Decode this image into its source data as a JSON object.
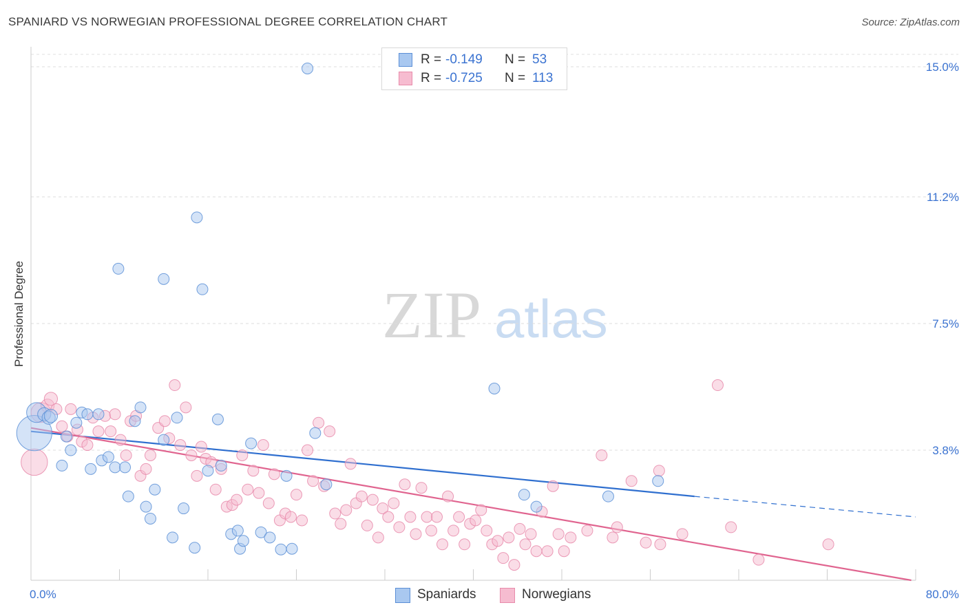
{
  "header": {
    "title": "SPANIARD VS NORWEGIAN PROFESSIONAL DEGREE CORRELATION CHART",
    "source": "Source: ZipAtlas.com"
  },
  "watermark": {
    "zip": "ZIP",
    "atlas": "atlas"
  },
  "stats": [
    {
      "r_label": "R =",
      "r_value": "-0.149",
      "n_label": "N =",
      "n_value": "53"
    },
    {
      "r_label": "R =",
      "r_value": "-0.725",
      "n_label": "N =",
      "n_value": "113"
    }
  ],
  "legend": [
    "Spaniards",
    "Norwegians"
  ],
  "colors": {
    "spaniards_fill": "#a9c8f0",
    "spaniards_stroke": "#5b8fd6",
    "spaniards_line": "#2f6fcf",
    "norwegians_fill": "#f6bcd0",
    "norwegians_stroke": "#e88aaa",
    "norwegians_line": "#e0648f",
    "axis_label": "#3b73d1",
    "grid": "#dddddd"
  },
  "chart_data": {
    "type": "scatter",
    "title": "SPANIARD VS NORWEGIAN PROFESSIONAL DEGREE CORRELATION CHART",
    "xlabel": "",
    "ylabel": "Professional Degree",
    "xlim": [
      0,
      80
    ],
    "ylim": [
      0,
      15.2
    ],
    "x_tick_labels": [
      {
        "value": 0,
        "label": "0.0%"
      },
      {
        "value": 80,
        "label": "80.0%"
      }
    ],
    "y_tick_labels": [
      {
        "value": 3.8,
        "label": "3.8%"
      },
      {
        "value": 7.5,
        "label": "7.5%"
      },
      {
        "value": 11.2,
        "label": "11.2%"
      },
      {
        "value": 15.0,
        "label": "15.0%"
      }
    ],
    "grid": true,
    "legend_position": "bottom-center",
    "series": [
      {
        "name": "Spaniards",
        "r": -0.149,
        "n": 53,
        "trend": {
          "x0": 0,
          "y0": 4.35,
          "x1": 60,
          "y1": 2.45,
          "dashed_to_x": 80,
          "dashed_y": 1.85
        },
        "points": [
          [
            0.3,
            4.3,
            1.6
          ],
          [
            0.5,
            4.9,
            0.9
          ],
          [
            1.2,
            4.85,
            0.6
          ],
          [
            1.6,
            4.75,
            0.6
          ],
          [
            1.8,
            4.8,
            0.6
          ],
          [
            2.8,
            3.35,
            0.5
          ],
          [
            3.2,
            4.2,
            0.5
          ],
          [
            3.6,
            3.8,
            0.5
          ],
          [
            4.1,
            4.6,
            0.5
          ],
          [
            4.6,
            4.9,
            0.5
          ],
          [
            5.1,
            4.85,
            0.5
          ],
          [
            5.4,
            3.25,
            0.5
          ],
          [
            6.1,
            4.85,
            0.5
          ],
          [
            6.4,
            3.5,
            0.5
          ],
          [
            7.0,
            3.6,
            0.5
          ],
          [
            7.6,
            3.3,
            0.5
          ],
          [
            8.5,
            3.3,
            0.5
          ],
          [
            8.8,
            2.45,
            0.5
          ],
          [
            9.4,
            4.65,
            0.5
          ],
          [
            9.9,
            5.05,
            0.5
          ],
          [
            10.4,
            2.15,
            0.5
          ],
          [
            10.8,
            1.8,
            0.5
          ],
          [
            11.2,
            2.65,
            0.5
          ],
          [
            12.0,
            4.1,
            0.5
          ],
          [
            12.8,
            1.25,
            0.5
          ],
          [
            13.2,
            4.75,
            0.5
          ],
          [
            13.8,
            2.1,
            0.5
          ],
          [
            14.8,
            0.95,
            0.5
          ],
          [
            16.0,
            3.2,
            0.5
          ],
          [
            16.9,
            4.7,
            0.5
          ],
          [
            17.2,
            3.35,
            0.5
          ],
          [
            18.1,
            1.35,
            0.5
          ],
          [
            18.7,
            1.45,
            0.5
          ],
          [
            18.9,
            0.92,
            0.5
          ],
          [
            19.2,
            1.15,
            0.5
          ],
          [
            19.9,
            4.0,
            0.5
          ],
          [
            20.8,
            1.4,
            0.5
          ],
          [
            21.6,
            1.25,
            0.5
          ],
          [
            22.6,
            0.9,
            0.5
          ],
          [
            23.1,
            3.05,
            0.5
          ],
          [
            23.6,
            0.92,
            0.5
          ],
          [
            25.7,
            4.3,
            0.5
          ],
          [
            26.7,
            2.8,
            0.5
          ],
          [
            7.9,
            9.1,
            0.5
          ],
          [
            12.0,
            8.8,
            0.5
          ],
          [
            15.0,
            10.6,
            0.5
          ],
          [
            15.5,
            8.5,
            0.5
          ],
          [
            25.0,
            14.95,
            0.5
          ],
          [
            41.9,
            5.6,
            0.5
          ],
          [
            44.6,
            2.5,
            0.5
          ],
          [
            45.7,
            2.15,
            0.5
          ],
          [
            52.2,
            2.45,
            0.5
          ],
          [
            56.7,
            2.9,
            0.5
          ]
        ]
      },
      {
        "name": "Norwegians",
        "r": -0.725,
        "n": 113,
        "trend": {
          "x0": 0,
          "y0": 4.45,
          "x1": 80,
          "y1": -0.2
        },
        "points": [
          [
            0.3,
            3.45,
            1.2
          ],
          [
            0.9,
            4.9,
            0.9
          ],
          [
            1.5,
            5.1,
            0.6
          ],
          [
            1.8,
            5.3,
            0.6
          ],
          [
            2.3,
            5.0,
            0.5
          ],
          [
            2.8,
            4.5,
            0.5
          ],
          [
            3.3,
            4.2,
            0.5
          ],
          [
            3.6,
            5.0,
            0.5
          ],
          [
            4.2,
            4.4,
            0.5
          ],
          [
            4.6,
            4.05,
            0.5
          ],
          [
            5.1,
            3.95,
            0.5
          ],
          [
            5.6,
            4.75,
            0.5
          ],
          [
            6.1,
            4.35,
            0.5
          ],
          [
            6.7,
            4.8,
            0.5
          ],
          [
            7.2,
            4.35,
            0.5
          ],
          [
            7.6,
            4.85,
            0.5
          ],
          [
            8.1,
            4.1,
            0.5
          ],
          [
            8.6,
            3.65,
            0.5
          ],
          [
            9.0,
            4.65,
            0.5
          ],
          [
            9.5,
            4.8,
            0.5
          ],
          [
            9.9,
            3.05,
            0.5
          ],
          [
            10.4,
            3.25,
            0.5
          ],
          [
            10.8,
            3.65,
            0.5
          ],
          [
            11.5,
            4.45,
            0.5
          ],
          [
            12.1,
            4.65,
            0.5
          ],
          [
            12.5,
            4.15,
            0.5
          ],
          [
            13.0,
            5.7,
            0.5
          ],
          [
            13.5,
            3.95,
            0.5
          ],
          [
            14.0,
            5.05,
            0.5
          ],
          [
            14.5,
            3.65,
            0.5
          ],
          [
            15.0,
            3.05,
            0.5
          ],
          [
            15.4,
            3.9,
            0.5
          ],
          [
            15.8,
            3.55,
            0.5
          ],
          [
            16.3,
            3.45,
            0.5
          ],
          [
            16.7,
            2.65,
            0.5
          ],
          [
            17.2,
            3.25,
            0.5
          ],
          [
            17.7,
            2.15,
            0.5
          ],
          [
            18.2,
            2.2,
            0.5
          ],
          [
            18.6,
            2.35,
            0.5
          ],
          [
            19.1,
            3.65,
            0.5
          ],
          [
            19.6,
            2.65,
            0.5
          ],
          [
            20.1,
            3.2,
            0.5
          ],
          [
            20.6,
            2.55,
            0.5
          ],
          [
            21.0,
            3.95,
            0.5
          ],
          [
            21.5,
            2.25,
            0.5
          ],
          [
            22.0,
            3.1,
            0.5
          ],
          [
            22.5,
            1.75,
            0.5
          ],
          [
            23.0,
            1.95,
            0.5
          ],
          [
            23.5,
            1.85,
            0.5
          ],
          [
            24.0,
            2.5,
            0.5
          ],
          [
            24.5,
            1.75,
            0.5
          ],
          [
            25.0,
            3.8,
            0.5
          ],
          [
            25.5,
            2.9,
            0.5
          ],
          [
            26.0,
            4.6,
            0.5
          ],
          [
            26.5,
            2.75,
            0.5
          ],
          [
            27.0,
            4.35,
            0.5
          ],
          [
            27.5,
            1.95,
            0.5
          ],
          [
            28.0,
            1.65,
            0.5
          ],
          [
            28.5,
            2.05,
            0.5
          ],
          [
            28.9,
            3.4,
            0.5
          ],
          [
            29.4,
            2.25,
            0.5
          ],
          [
            29.9,
            2.45,
            0.5
          ],
          [
            30.4,
            1.6,
            0.5
          ],
          [
            30.9,
            2.35,
            0.5
          ],
          [
            31.4,
            1.25,
            0.5
          ],
          [
            31.8,
            2.1,
            0.5
          ],
          [
            32.3,
            1.85,
            0.5
          ],
          [
            32.8,
            2.25,
            0.5
          ],
          [
            33.3,
            1.55,
            0.5
          ],
          [
            33.8,
            2.8,
            0.5
          ],
          [
            34.3,
            1.85,
            0.5
          ],
          [
            34.8,
            1.35,
            0.5
          ],
          [
            35.3,
            2.7,
            0.5
          ],
          [
            35.8,
            1.85,
            0.5
          ],
          [
            36.2,
            1.45,
            0.5
          ],
          [
            36.7,
            1.85,
            0.5
          ],
          [
            37.2,
            1.05,
            0.5
          ],
          [
            37.7,
            2.45,
            0.5
          ],
          [
            38.2,
            1.45,
            0.5
          ],
          [
            38.7,
            1.85,
            0.5
          ],
          [
            39.2,
            1.05,
            0.5
          ],
          [
            39.7,
            1.65,
            0.5
          ],
          [
            40.2,
            1.75,
            0.5
          ],
          [
            40.7,
            2.05,
            0.5
          ],
          [
            41.2,
            1.45,
            0.5
          ],
          [
            41.7,
            1.05,
            0.5
          ],
          [
            42.2,
            1.15,
            0.5
          ],
          [
            42.7,
            0.65,
            0.5
          ],
          [
            43.2,
            1.25,
            0.5
          ],
          [
            43.7,
            0.45,
            0.5
          ],
          [
            44.2,
            1.5,
            0.5
          ],
          [
            44.7,
            1.05,
            0.5
          ],
          [
            45.2,
            1.35,
            0.5
          ],
          [
            45.7,
            0.85,
            0.5
          ],
          [
            46.2,
            2.0,
            0.5
          ],
          [
            46.7,
            0.85,
            0.5
          ],
          [
            47.2,
            2.75,
            0.5
          ],
          [
            47.7,
            1.35,
            0.5
          ],
          [
            48.2,
            0.85,
            0.5
          ],
          [
            48.8,
            1.25,
            0.5
          ],
          [
            50.3,
            1.45,
            0.5
          ],
          [
            51.6,
            3.65,
            0.5
          ],
          [
            52.6,
            1.25,
            0.5
          ],
          [
            53.0,
            1.55,
            0.5
          ],
          [
            54.3,
            2.9,
            0.5
          ],
          [
            55.6,
            1.1,
            0.5
          ],
          [
            56.8,
            3.2,
            0.5
          ],
          [
            56.9,
            1.05,
            0.5
          ],
          [
            58.9,
            1.35,
            0.5
          ],
          [
            62.1,
            5.7,
            0.5
          ],
          [
            63.3,
            1.55,
            0.5
          ],
          [
            65.8,
            0.6,
            0.5
          ],
          [
            72.1,
            1.05,
            0.5
          ]
        ]
      }
    ]
  }
}
